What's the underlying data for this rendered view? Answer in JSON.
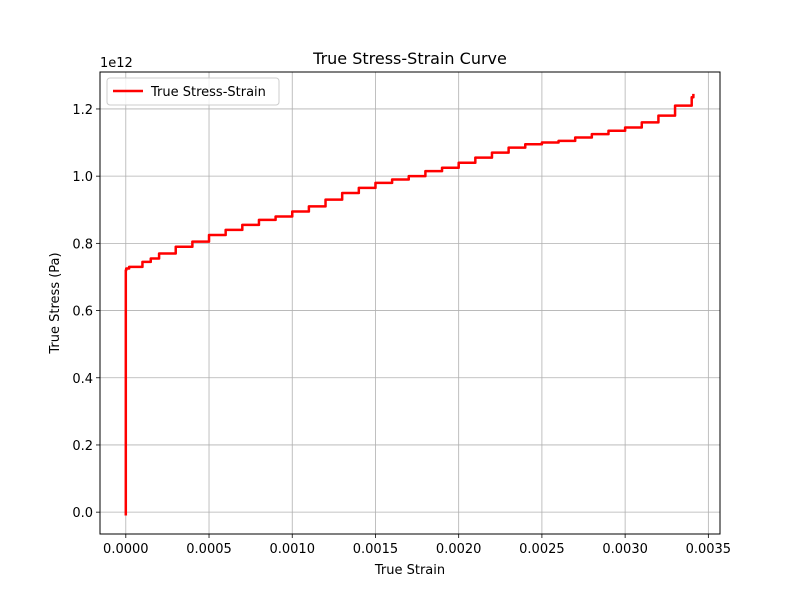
{
  "chart_data": {
    "type": "line",
    "title": "True Stress-Strain Curve",
    "xlabel": "True Strain",
    "ylabel": "True Stress (Pa)",
    "y_scale_label": "1e12",
    "xlim": [
      -0.000155,
      0.00357
    ],
    "ylim": [
      -0.065,
      1.31
    ],
    "y_multiplier": 1000000000000.0,
    "grid": true,
    "legend_position": "upper-left",
    "x_ticks": [
      0,
      0.0005,
      0.001,
      0.0015,
      0.002,
      0.0025,
      0.003,
      0.0035
    ],
    "x_tick_labels": [
      "0.0000",
      "0.0005",
      "0.0010",
      "0.0015",
      "0.0020",
      "0.0025",
      "0.0030",
      "0.0035"
    ],
    "y_ticks": [
      0,
      0.2,
      0.4,
      0.6,
      0.8,
      1.0,
      1.2
    ],
    "y_tick_labels": [
      "0.0",
      "0.2",
      "0.4",
      "0.6",
      "0.8",
      "1.0",
      "1.2"
    ],
    "series": [
      {
        "name": "True Stress-Strain",
        "color": "#ff0000",
        "step": true,
        "x": [
          0,
          0,
          2.5e-06,
          2e-05,
          0.0001,
          0.00015,
          0.0002,
          0.0003,
          0.0004,
          0.0005,
          0.0006,
          0.0007,
          0.0008,
          0.0009,
          0.001,
          0.0011,
          0.0012,
          0.0013,
          0.0014,
          0.0015,
          0.0016,
          0.0017,
          0.0018,
          0.0019,
          0.002,
          0.0021,
          0.0022,
          0.0023,
          0.0024,
          0.0025,
          0.0026,
          0.0027,
          0.0028,
          0.0029,
          0.003,
          0.0031,
          0.0032,
          0.0033,
          0.0034,
          0.00341
        ],
        "y": [
          -0.01,
          0.72,
          0.725,
          0.73,
          0.745,
          0.755,
          0.77,
          0.79,
          0.805,
          0.825,
          0.84,
          0.855,
          0.87,
          0.88,
          0.895,
          0.91,
          0.93,
          0.95,
          0.965,
          0.98,
          0.99,
          1.0,
          1.015,
          1.025,
          1.04,
          1.055,
          1.07,
          1.085,
          1.095,
          1.1,
          1.105,
          1.115,
          1.125,
          1.135,
          1.145,
          1.16,
          1.18,
          1.21,
          1.235,
          1.245
        ]
      }
    ]
  }
}
